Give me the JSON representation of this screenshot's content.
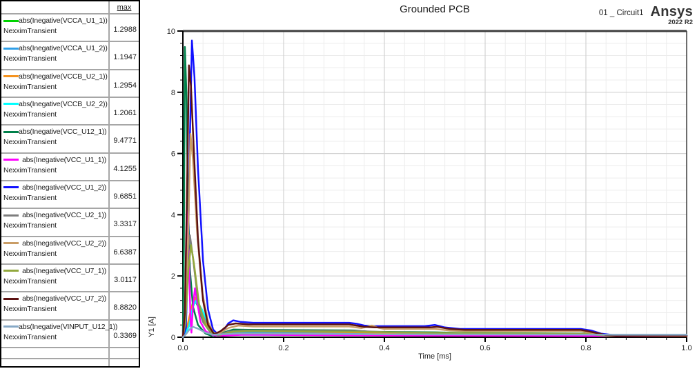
{
  "legend": {
    "header_max": "max",
    "sublabel": "NexximTransient"
  },
  "header": {
    "title": "Grounded PCB",
    "design_label": "01 _ Circuit1",
    "brand": "Ansys",
    "brand_version": "2022 R2"
  },
  "axes": {
    "ylabel": "Y1 [A]",
    "xlabel": "Time [ms]"
  },
  "chart_data": {
    "type": "line",
    "title": "Grounded PCB",
    "xlabel": "Time [ms]",
    "ylabel": "Y1 [A]",
    "xlim": [
      0,
      1
    ],
    "ylim": [
      0,
      10
    ],
    "xticks": [
      "0.0",
      "0.2",
      "0.4",
      "0.6",
      "0.8",
      "1.0"
    ],
    "yticks": [
      0,
      2,
      4,
      6,
      8,
      10
    ],
    "x_minor_step": 0.04,
    "y_minor_step": 0.4,
    "grid": true,
    "legend_position": "left-table",
    "series": [
      {
        "name": "abs(Inegative(VCCA_U1_1))",
        "solver": "NexximTransient",
        "max": "1.2988",
        "color": "#00d300",
        "points": [
          [
            0,
            0
          ],
          [
            0.008,
            0.2
          ],
          [
            0.015,
            0.8
          ],
          [
            0.022,
            1.3
          ],
          [
            0.03,
            1.0
          ],
          [
            0.04,
            0.5
          ],
          [
            0.055,
            0.15
          ],
          [
            0.07,
            0.06
          ],
          [
            0.09,
            0.15
          ],
          [
            0.12,
            0.22
          ],
          [
            0.3,
            0.2
          ],
          [
            0.35,
            0.18
          ],
          [
            0.5,
            0.14
          ],
          [
            0.8,
            0.11
          ],
          [
            0.85,
            0.06
          ],
          [
            1.0,
            0.055
          ]
        ]
      },
      {
        "name": "abs(Inegative(VCCA_U1_2))",
        "solver": "NexximTransient",
        "max": "1.1947",
        "color": "#2f9fe8",
        "points": [
          [
            0,
            0
          ],
          [
            0.01,
            0.3
          ],
          [
            0.018,
            0.9
          ],
          [
            0.025,
            1.19
          ],
          [
            0.035,
            0.9
          ],
          [
            0.05,
            0.35
          ],
          [
            0.065,
            0.1
          ],
          [
            0.09,
            0.12
          ],
          [
            0.12,
            0.15
          ],
          [
            0.35,
            0.12
          ],
          [
            0.5,
            0.1
          ],
          [
            0.8,
            0.08
          ],
          [
            0.86,
            0.045
          ],
          [
            1.0,
            0.04
          ]
        ]
      },
      {
        "name": "abs(Inegative(VCCB_U2_1))",
        "solver": "NexximTransient",
        "max": "1.2954",
        "color": "#f5921e",
        "points": [
          [
            0,
            0
          ],
          [
            0.008,
            0.3
          ],
          [
            0.016,
            0.9
          ],
          [
            0.024,
            1.3
          ],
          [
            0.033,
            1.0
          ],
          [
            0.045,
            0.45
          ],
          [
            0.06,
            0.12
          ],
          [
            0.08,
            0.12
          ],
          [
            0.1,
            0.18
          ],
          [
            0.13,
            0.2
          ],
          [
            0.35,
            0.16
          ],
          [
            0.5,
            0.12
          ],
          [
            0.8,
            0.1
          ],
          [
            0.85,
            0.05
          ],
          [
            1.0,
            0.04
          ]
        ]
      },
      {
        "name": "abs(Inegative(VCCB_U2_2))",
        "solver": "NexximTransient",
        "max": "1.2061",
        "color": "#00ffff",
        "points": [
          [
            0,
            0
          ],
          [
            0.012,
            0.35
          ],
          [
            0.02,
            1.0
          ],
          [
            0.027,
            1.21
          ],
          [
            0.038,
            0.9
          ],
          [
            0.055,
            0.3
          ],
          [
            0.07,
            0.08
          ],
          [
            0.1,
            0.08
          ],
          [
            0.35,
            0.07
          ],
          [
            0.5,
            0.06
          ],
          [
            0.8,
            0.055
          ],
          [
            1.0,
            0.05
          ]
        ]
      },
      {
        "name": "abs(Inegative(VCC_U12_1))",
        "solver": "NexximTransient",
        "max": "9.4771",
        "color": "#00804a",
        "points": [
          [
            0,
            0
          ],
          [
            0.002,
            3.0
          ],
          [
            0.004,
            9.48
          ],
          [
            0.007,
            8.0
          ],
          [
            0.01,
            4.5
          ],
          [
            0.014,
            2.2
          ],
          [
            0.02,
            1.0
          ],
          [
            0.03,
            0.4
          ],
          [
            0.045,
            0.12
          ],
          [
            0.06,
            0.03
          ],
          [
            0.08,
            0.15
          ],
          [
            0.1,
            0.25
          ],
          [
            0.13,
            0.24
          ],
          [
            0.34,
            0.22
          ],
          [
            0.37,
            0.18
          ],
          [
            0.5,
            0.16
          ],
          [
            0.55,
            0.14
          ],
          [
            0.8,
            0.12
          ],
          [
            0.84,
            0.06
          ],
          [
            0.87,
            0.05
          ],
          [
            1.0,
            0.05
          ]
        ]
      },
      {
        "name": "abs(Inegative(VCC_U1_1))",
        "solver": "NexximTransient",
        "max": "4.1255",
        "color": "#ff00ff",
        "points": [
          [
            0,
            0
          ],
          [
            0.004,
            0.8
          ],
          [
            0.008,
            4.13
          ],
          [
            0.012,
            2.5
          ],
          [
            0.015,
            0.6
          ],
          [
            0.017,
            0.15
          ],
          [
            0.02,
            1.0
          ],
          [
            0.024,
            1.6
          ],
          [
            0.028,
            1.2
          ],
          [
            0.035,
            0.5
          ],
          [
            0.045,
            0.2
          ],
          [
            0.06,
            0.06
          ],
          [
            0.08,
            0.05
          ],
          [
            0.12,
            0.08
          ],
          [
            0.35,
            0.06
          ],
          [
            0.5,
            0.05
          ],
          [
            0.8,
            0.04
          ],
          [
            1.0,
            0.03
          ]
        ]
      },
      {
        "name": "abs(Inegative(VCC_U1_2))",
        "solver": "NexximTransient",
        "max": "9.6851",
        "color": "#1212ff",
        "points": [
          [
            0,
            0
          ],
          [
            0.006,
            0.3
          ],
          [
            0.01,
            2.5
          ],
          [
            0.014,
            6.5
          ],
          [
            0.018,
            9.69
          ],
          [
            0.023,
            8.5
          ],
          [
            0.03,
            5.5
          ],
          [
            0.04,
            2.5
          ],
          [
            0.05,
            0.9
          ],
          [
            0.06,
            0.25
          ],
          [
            0.068,
            0.12
          ],
          [
            0.08,
            0.2
          ],
          [
            0.09,
            0.45
          ],
          [
            0.1,
            0.55
          ],
          [
            0.115,
            0.5
          ],
          [
            0.14,
            0.47
          ],
          [
            0.33,
            0.47
          ],
          [
            0.345,
            0.44
          ],
          [
            0.36,
            0.38
          ],
          [
            0.38,
            0.36
          ],
          [
            0.48,
            0.36
          ],
          [
            0.5,
            0.4
          ],
          [
            0.52,
            0.32
          ],
          [
            0.55,
            0.27
          ],
          [
            0.79,
            0.27
          ],
          [
            0.81,
            0.22
          ],
          [
            0.83,
            0.12
          ],
          [
            0.86,
            0.06
          ],
          [
            0.88,
            0.05
          ],
          [
            1.0,
            0.05
          ]
        ]
      },
      {
        "name": "abs(Inegative(VCC_U2_1))",
        "solver": "NexximTransient",
        "max": "3.3317",
        "color": "#7d7d7d",
        "points": [
          [
            0,
            0
          ],
          [
            0.005,
            0.8
          ],
          [
            0.01,
            2.8
          ],
          [
            0.014,
            3.33
          ],
          [
            0.02,
            2.6
          ],
          [
            0.03,
            1.2
          ],
          [
            0.04,
            0.5
          ],
          [
            0.055,
            0.15
          ],
          [
            0.07,
            0.06
          ],
          [
            0.09,
            0.18
          ],
          [
            0.12,
            0.22
          ],
          [
            0.35,
            0.2
          ],
          [
            0.4,
            0.17
          ],
          [
            0.5,
            0.14
          ],
          [
            0.55,
            0.12
          ],
          [
            0.8,
            0.11
          ],
          [
            0.84,
            0.05
          ],
          [
            1.0,
            0.04
          ]
        ]
      },
      {
        "name": "abs(Inegative(VCC_U2_2))",
        "solver": "NexximTransient",
        "max": "6.6387",
        "color": "#c99d66",
        "points": [
          [
            0,
            0
          ],
          [
            0.005,
            0.6
          ],
          [
            0.01,
            3.0
          ],
          [
            0.015,
            6.64
          ],
          [
            0.02,
            5.8
          ],
          [
            0.028,
            3.5
          ],
          [
            0.038,
            1.5
          ],
          [
            0.05,
            0.5
          ],
          [
            0.06,
            0.15
          ],
          [
            0.07,
            0.1
          ],
          [
            0.09,
            0.3
          ],
          [
            0.11,
            0.38
          ],
          [
            0.14,
            0.35
          ],
          [
            0.33,
            0.35
          ],
          [
            0.355,
            0.3
          ],
          [
            0.375,
            0.38
          ],
          [
            0.39,
            0.3
          ],
          [
            0.4,
            0.27
          ],
          [
            0.5,
            0.27
          ],
          [
            0.53,
            0.22
          ],
          [
            0.56,
            0.2
          ],
          [
            0.79,
            0.2
          ],
          [
            0.82,
            0.1
          ],
          [
            0.845,
            0.04
          ],
          [
            1.0,
            0.03
          ]
        ]
      },
      {
        "name": "abs(Inegative(VCC_U7_1))",
        "solver": "NexximTransient",
        "max": "3.0117",
        "color": "#92a83d",
        "points": [
          [
            0,
            0
          ],
          [
            0.005,
            0.5
          ],
          [
            0.011,
            2.2
          ],
          [
            0.016,
            3.01
          ],
          [
            0.022,
            2.4
          ],
          [
            0.032,
            1.1
          ],
          [
            0.045,
            0.4
          ],
          [
            0.06,
            0.1
          ],
          [
            0.075,
            0.08
          ],
          [
            0.1,
            0.18
          ],
          [
            0.13,
            0.2
          ],
          [
            0.35,
            0.18
          ],
          [
            0.45,
            0.15
          ],
          [
            0.55,
            0.13
          ],
          [
            0.8,
            0.11
          ],
          [
            0.84,
            0.05
          ],
          [
            1.0,
            0.04
          ]
        ]
      },
      {
        "name": "abs(Inegative(VCC_U7_2))",
        "solver": "NexximTransient",
        "max": "8.8820",
        "color": "#5c1212",
        "points": [
          [
            0,
            0
          ],
          [
            0.004,
            0.8
          ],
          [
            0.008,
            4.5
          ],
          [
            0.012,
            8.88
          ],
          [
            0.016,
            8.2
          ],
          [
            0.022,
            6.0
          ],
          [
            0.03,
            3.2
          ],
          [
            0.04,
            1.2
          ],
          [
            0.05,
            0.4
          ],
          [
            0.062,
            0.1
          ],
          [
            0.075,
            0.2
          ],
          [
            0.09,
            0.4
          ],
          [
            0.105,
            0.45
          ],
          [
            0.13,
            0.42
          ],
          [
            0.33,
            0.42
          ],
          [
            0.36,
            0.34
          ],
          [
            0.38,
            0.32
          ],
          [
            0.49,
            0.32
          ],
          [
            0.505,
            0.34
          ],
          [
            0.53,
            0.27
          ],
          [
            0.56,
            0.24
          ],
          [
            0.79,
            0.24
          ],
          [
            0.815,
            0.16
          ],
          [
            0.84,
            0.07
          ],
          [
            0.86,
            0.04
          ],
          [
            1.0,
            0.04
          ]
        ]
      },
      {
        "name": "abs(Inegative(VINPUT_U12_1))",
        "solver": "NexximTransient",
        "max": "0.3369",
        "color": "#87a9c6",
        "points": [
          [
            0,
            0
          ],
          [
            0.006,
            0.1
          ],
          [
            0.013,
            0.25
          ],
          [
            0.02,
            0.34
          ],
          [
            0.03,
            0.28
          ],
          [
            0.045,
            0.15
          ],
          [
            0.06,
            0.08
          ],
          [
            0.08,
            0.1
          ],
          [
            0.11,
            0.12
          ],
          [
            0.35,
            0.1
          ],
          [
            0.5,
            0.09
          ],
          [
            0.8,
            0.085
          ],
          [
            0.87,
            0.08
          ],
          [
            1.0,
            0.08
          ]
        ]
      }
    ]
  }
}
